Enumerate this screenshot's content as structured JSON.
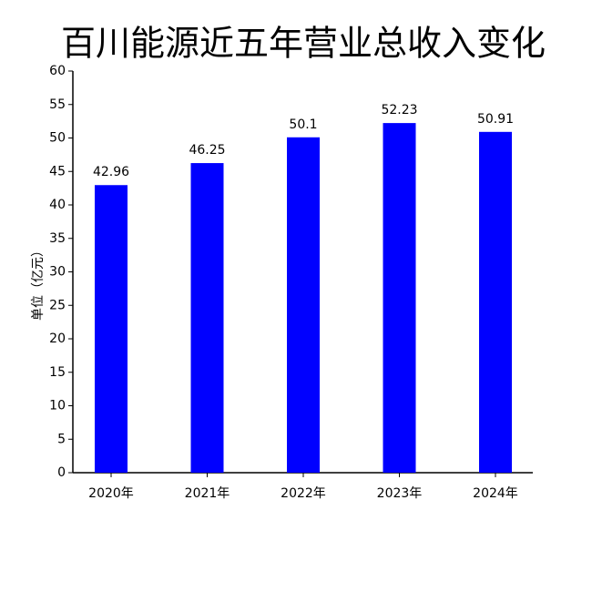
{
  "chart_data": {
    "type": "bar",
    "title": "百川能源近五年营业总收入变化",
    "y_label": "单位（亿元）",
    "categories": [
      "2020年",
      "2021年",
      "2022年",
      "2023年",
      "2024年"
    ],
    "values": [
      42.96,
      46.25,
      50.1,
      52.23,
      50.91
    ],
    "color": "#0000ff",
    "ylim": [
      0,
      60
    ],
    "yticks": [
      0,
      5,
      10,
      15,
      20,
      25,
      30,
      35,
      40,
      45,
      50,
      55,
      60
    ]
  }
}
